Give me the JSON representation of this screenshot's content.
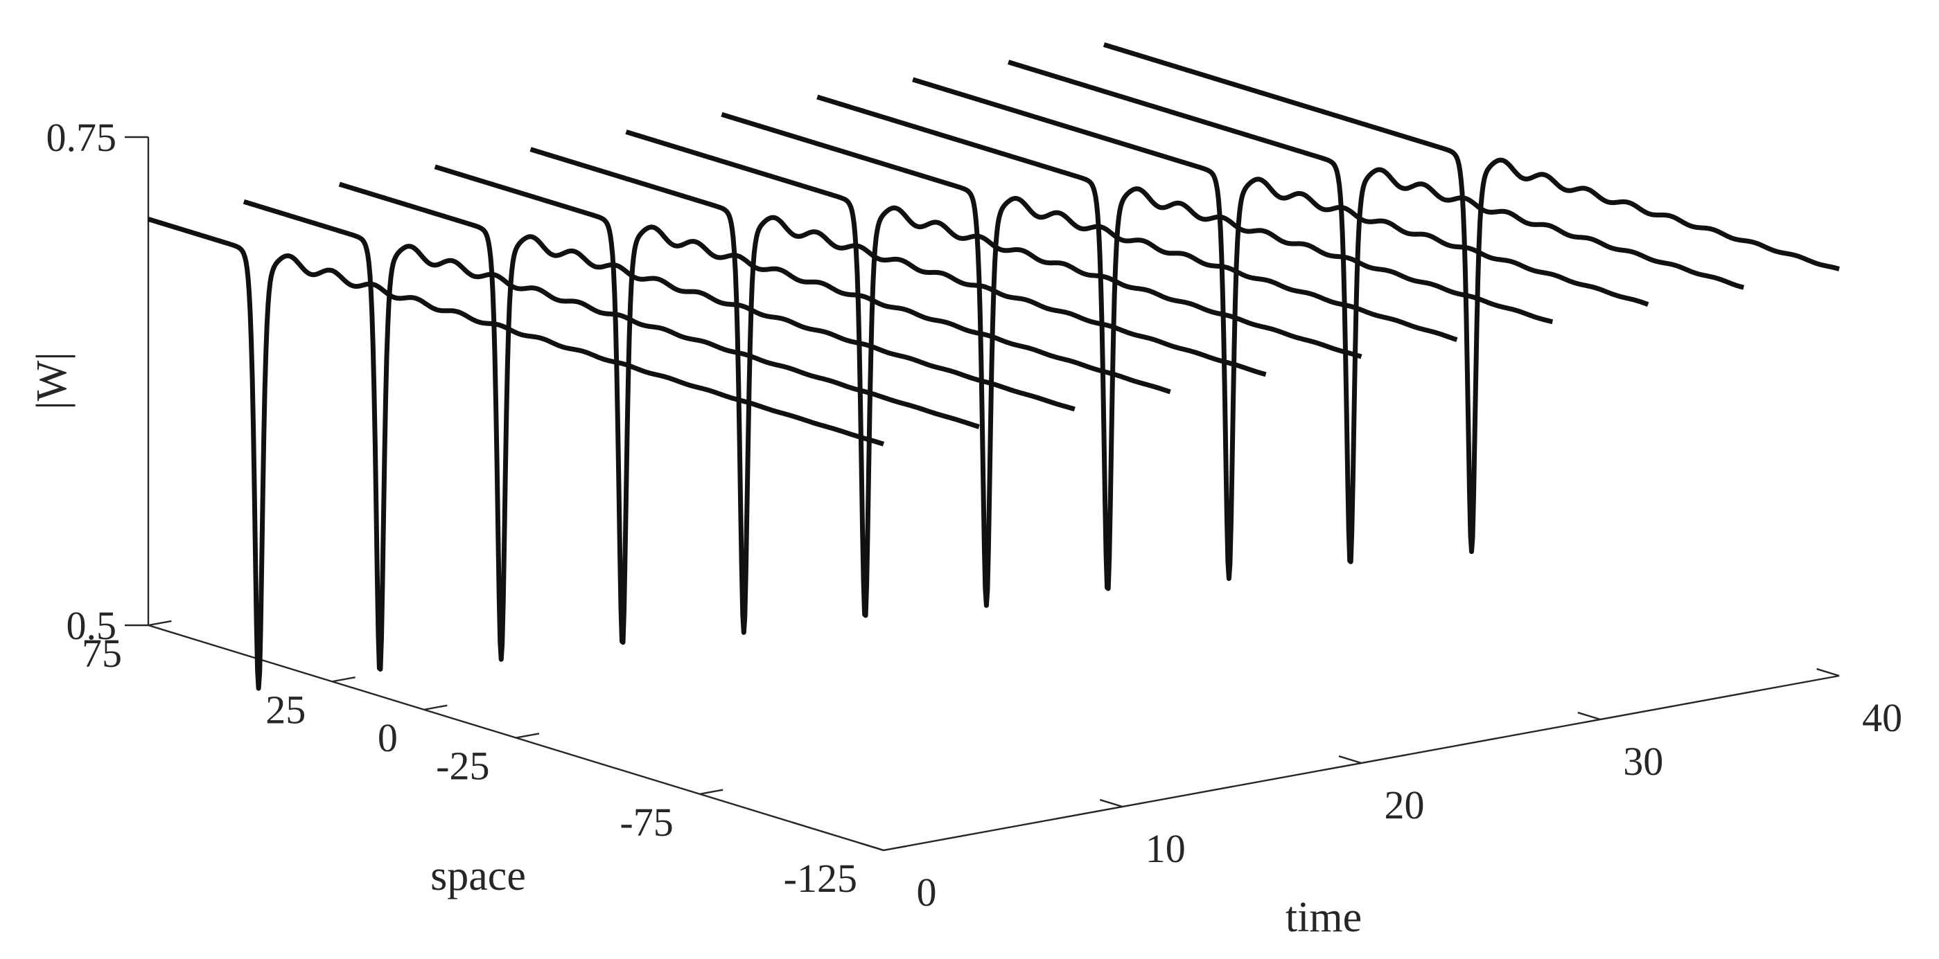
{
  "chart_data": {
    "type": "line",
    "view": "3d-waterfall",
    "xlabel": "space",
    "ylabel": "time",
    "zlabel": "|W|",
    "xlim": [
      -125,
      75
    ],
    "ylim": [
      0,
      40
    ],
    "zlim": [
      0.5,
      0.75
    ],
    "x_ticks": [
      75,
      25,
      0,
      -25,
      -75,
      -125
    ],
    "y_ticks": [
      0,
      10,
      20,
      30,
      40
    ],
    "z_ticks": [
      0.5,
      0.75
    ],
    "grid": false,
    "legend": "none",
    "line_color": "#111111",
    "series": [
      {
        "time": 0,
        "baseline": 0.708,
        "dip_center": 45,
        "dip_min": 0.485
      },
      {
        "time": 4,
        "baseline": 0.708,
        "dip_center": 38,
        "dip_min": 0.488
      },
      {
        "time": 8,
        "baseline": 0.708,
        "dip_center": 31,
        "dip_min": 0.49
      },
      {
        "time": 12,
        "baseline": 0.708,
        "dip_center": 24,
        "dip_min": 0.492
      },
      {
        "time": 16,
        "baseline": 0.708,
        "dip_center": 17,
        "dip_min": 0.494
      },
      {
        "time": 20,
        "baseline": 0.708,
        "dip_center": 10,
        "dip_min": 0.496
      },
      {
        "time": 24,
        "baseline": 0.708,
        "dip_center": 3,
        "dip_min": 0.498
      },
      {
        "time": 28,
        "baseline": 0.708,
        "dip_center": -4,
        "dip_min": 0.5
      },
      {
        "time": 32,
        "baseline": 0.708,
        "dip_center": -11,
        "dip_min": 0.502
      },
      {
        "time": 36,
        "baseline": 0.708,
        "dip_center": -18,
        "dip_min": 0.504
      },
      {
        "time": 40,
        "baseline": 0.708,
        "dip_center": -25,
        "dip_min": 0.506
      }
    ]
  }
}
